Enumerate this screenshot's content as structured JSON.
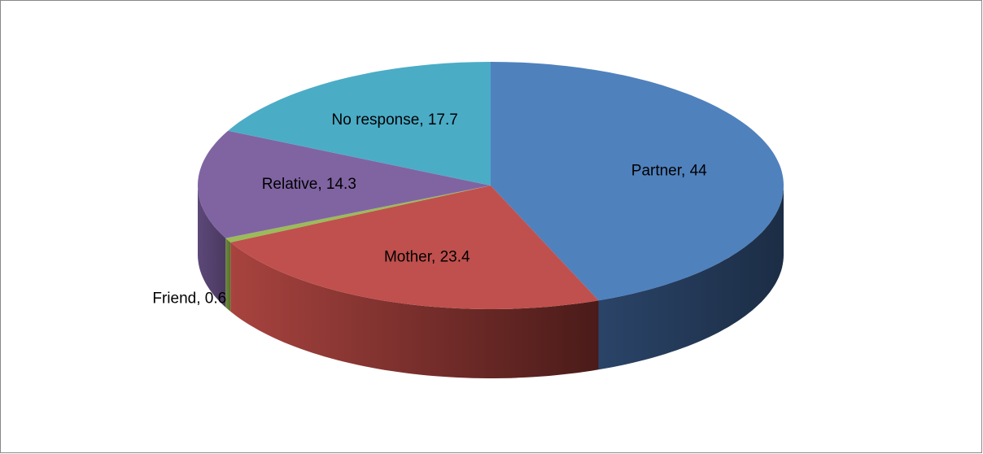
{
  "chart_data": {
    "type": "pie3d",
    "values": [
      44,
      23.4,
      0.6,
      14.3,
      17.7
    ],
    "value_labels": [
      "Partner, 44",
      "Mother, 23.4",
      "Friend, 0.6",
      "Relative, 14.3",
      "No response, 17.7"
    ],
    "colors": [
      "#4f81bd",
      "#c0504d",
      "#9bbb59",
      "#8064a2",
      "#4bacc6"
    ],
    "side_colors": [
      [
        "#2a4468",
        "#1c2d45"
      ],
      [
        "#a8433f",
        "#4a1b19"
      ],
      [
        "#6f8a3c",
        "#55702c"
      ],
      [
        "#5d4878",
        "#4a3960"
      ],
      [
        "#347f93",
        "#2a6675"
      ]
    ]
  }
}
